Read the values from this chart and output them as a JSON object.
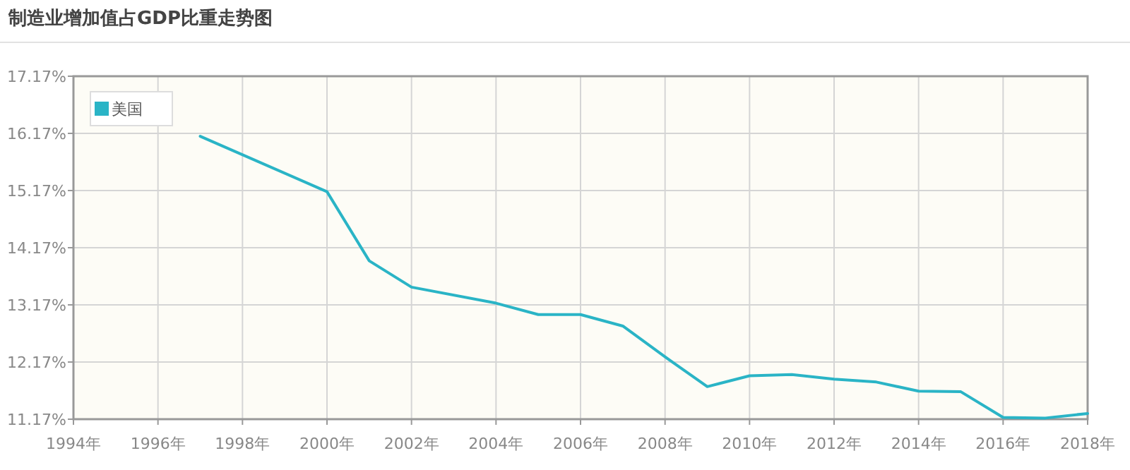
{
  "chart_data": {
    "type": "line",
    "title": "制造业增加值占GDP比重走势图",
    "x": [
      1997,
      2000,
      2001,
      2002,
      2004,
      2005,
      2006,
      2007,
      2008,
      2009,
      2010,
      2011,
      2012,
      2013,
      2014,
      2015,
      2016,
      2017,
      2018
    ],
    "series": [
      {
        "name": "美国",
        "color": "#2ab4c6",
        "values": [
          16.12,
          15.15,
          13.94,
          13.48,
          13.2,
          13.0,
          13.0,
          12.8,
          12.26,
          11.74,
          11.93,
          11.95,
          11.87,
          11.82,
          11.66,
          11.65,
          11.2,
          11.19,
          11.27
        ]
      }
    ],
    "xlim": [
      1994,
      2018
    ],
    "xticks": [
      {
        "value": 1994,
        "label": "1994年"
      },
      {
        "value": 1996,
        "label": "1996年"
      },
      {
        "value": 1998,
        "label": "1998年"
      },
      {
        "value": 2000,
        "label": "2000年"
      },
      {
        "value": 2002,
        "label": "2002年"
      },
      {
        "value": 2004,
        "label": "2004年"
      },
      {
        "value": 2006,
        "label": "2006年"
      },
      {
        "value": 2008,
        "label": "2008年"
      },
      {
        "value": 2010,
        "label": "2010年"
      },
      {
        "value": 2012,
        "label": "2012年"
      },
      {
        "value": 2014,
        "label": "2014年"
      },
      {
        "value": 2016,
        "label": "2016年"
      },
      {
        "value": 2018,
        "label": "2018年"
      }
    ],
    "ylim": [
      11.17,
      17.17
    ],
    "yticks": [
      {
        "value": 11.17,
        "label": "11.17%"
      },
      {
        "value": 12.17,
        "label": "12.17%"
      },
      {
        "value": 13.17,
        "label": "13.17%"
      },
      {
        "value": 14.17,
        "label": "14.17%"
      },
      {
        "value": 15.17,
        "label": "15.17%"
      },
      {
        "value": 16.17,
        "label": "16.17%"
      },
      {
        "value": 17.17,
        "label": "17.17%"
      }
    ],
    "grid": true,
    "legend": "top left",
    "marker": "none",
    "line_style": "solid"
  }
}
